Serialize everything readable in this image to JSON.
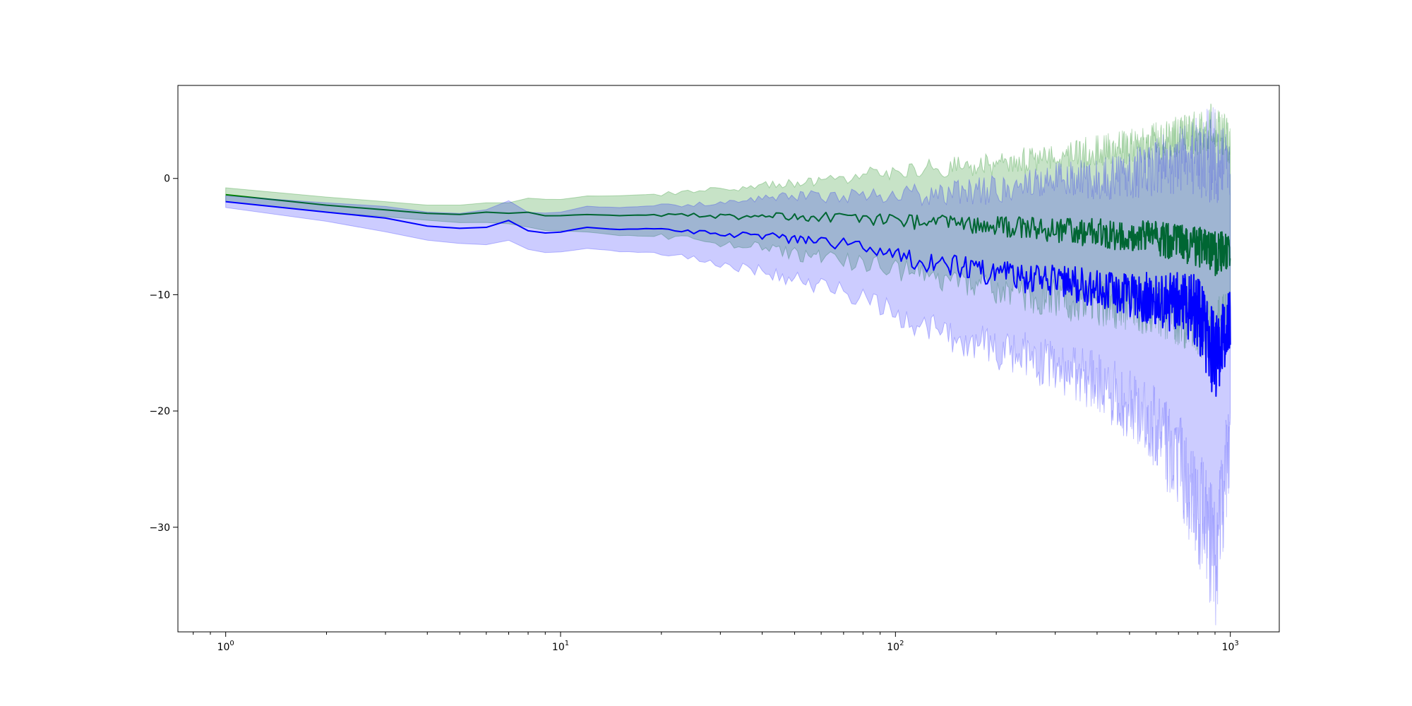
{
  "chart_data": {
    "type": "line",
    "title": "",
    "xlabel": "",
    "ylabel": "",
    "x_scale": "log",
    "xlim": [
      0.72,
      1400
    ],
    "ylim": [
      -39,
      8
    ],
    "grid": false,
    "legend": "none",
    "x_ticks": [
      {
        "value": 1,
        "base": "10",
        "exp": "0"
      },
      {
        "value": 10,
        "base": "10",
        "exp": "1"
      },
      {
        "value": 100,
        "base": "10",
        "exp": "2"
      },
      {
        "value": 1000,
        "base": "10",
        "exp": "3"
      }
    ],
    "y_ticks": [
      {
        "value": 0,
        "label": "0"
      },
      {
        "value": -10,
        "label": "−10"
      },
      {
        "value": -20,
        "label": "−20"
      },
      {
        "value": -30,
        "label": "−30"
      }
    ],
    "series": [
      {
        "color": "#008000",
        "band_color": "#008000",
        "band_opacity": 0.22,
        "x": [
          1,
          2,
          3,
          4,
          5,
          6,
          7,
          8,
          9,
          10,
          12,
          15,
          20,
          25,
          30,
          40,
          50,
          60,
          80,
          100,
          120,
          150,
          200,
          250,
          300,
          400,
          500,
          600,
          700,
          800,
          900,
          1000
        ],
        "mean": [
          -1.4,
          -2.3,
          -2.7,
          -3.0,
          -3.1,
          -2.9,
          -3.0,
          -2.9,
          -3.2,
          -3.2,
          -3.1,
          -3.2,
          -3.1,
          -3.2,
          -3.3,
          -3.2,
          -3.4,
          -3.3,
          -3.4,
          -3.6,
          -3.8,
          -3.9,
          -4.1,
          -4.3,
          -4.5,
          -4.7,
          -4.9,
          -5.2,
          -5.5,
          -5.8,
          -6.5,
          -6.0
        ],
        "lower": [
          -2.0,
          -2.9,
          -3.3,
          -3.6,
          -3.8,
          -3.8,
          -3.9,
          -4.2,
          -4.5,
          -4.5,
          -4.6,
          -4.9,
          -5.0,
          -5.3,
          -5.6,
          -6.0,
          -6.5,
          -6.8,
          -7.3,
          -7.8,
          -8.3,
          -8.7,
          -9.4,
          -10.0,
          -10.3,
          -10.8,
          -11.0,
          -11.5,
          -12.0,
          -12.5,
          -13.5,
          -12.0
        ],
        "upper": [
          -0.8,
          -1.6,
          -2.0,
          -2.3,
          -2.3,
          -2.1,
          -2.1,
          -1.7,
          -1.8,
          -1.8,
          -1.5,
          -1.5,
          -1.3,
          -1.1,
          -1.0,
          -0.6,
          -0.4,
          -0.2,
          0.3,
          0.6,
          0.8,
          1.0,
          1.3,
          1.6,
          1.9,
          2.3,
          2.8,
          3.2,
          3.6,
          4.0,
          4.5,
          3.0
        ]
      },
      {
        "color": "#0000ff",
        "band_color": "#0000ff",
        "band_opacity": 0.2,
        "x": [
          1,
          2,
          3,
          4,
          5,
          6,
          7,
          8,
          9,
          10,
          12,
          15,
          20,
          25,
          30,
          40,
          50,
          60,
          80,
          100,
          120,
          150,
          200,
          250,
          300,
          400,
          500,
          600,
          700,
          800,
          900,
          1000
        ],
        "mean": [
          -2.0,
          -2.9,
          -3.4,
          -4.1,
          -4.3,
          -4.2,
          -3.6,
          -4.5,
          -4.7,
          -4.6,
          -4.2,
          -4.4,
          -4.3,
          -4.6,
          -4.7,
          -4.9,
          -5.2,
          -5.4,
          -5.9,
          -6.5,
          -7.2,
          -7.5,
          -8.2,
          -8.6,
          -8.9,
          -9.4,
          -10.0,
          -10.4,
          -10.8,
          -11.4,
          -15.5,
          -12.0
        ],
        "lower": [
          -2.5,
          -3.7,
          -4.6,
          -5.3,
          -5.6,
          -5.7,
          -5.3,
          -6.1,
          -6.4,
          -6.3,
          -6.0,
          -6.3,
          -6.4,
          -6.9,
          -7.3,
          -8.0,
          -8.7,
          -9.3,
          -10.3,
          -11.6,
          -12.8,
          -13.6,
          -14.6,
          -15.3,
          -16.3,
          -17.5,
          -19.5,
          -21.5,
          -24.5,
          -28.0,
          -33.0,
          -22.0
        ],
        "upper": [
          -1.5,
          -2.1,
          -2.4,
          -2.9,
          -3.0,
          -2.7,
          -1.9,
          -2.9,
          -3.0,
          -2.9,
          -2.4,
          -2.5,
          -2.3,
          -2.3,
          -2.1,
          -1.8,
          -1.6,
          -1.5,
          -1.5,
          -1.4,
          -1.4,
          -1.2,
          -1.0,
          -0.6,
          -0.3,
          0.0,
          0.5,
          1.0,
          1.5,
          2.0,
          2.0,
          0.5
        ]
      }
    ]
  }
}
